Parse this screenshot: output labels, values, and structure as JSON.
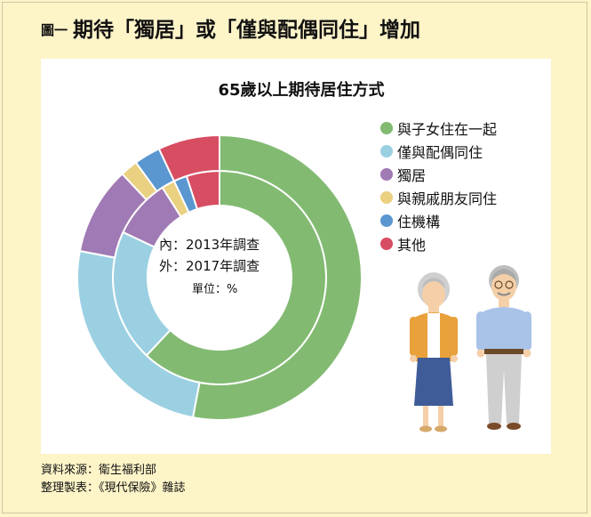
{
  "heading": {
    "figure_number": "圖一",
    "title": "期待「獨居」或「僅與配偶同住」增加"
  },
  "chart_data": {
    "type": "pie",
    "subtype": "nested-donut",
    "title": "65歲以上期待居住方式",
    "categories": [
      "與子女住在一起",
      "僅與配偶同住",
      "獨居",
      "與親戚朋友同住",
      "住機構",
      "其他"
    ],
    "colors": [
      "#82ba72",
      "#9bd0e2",
      "#a07ab4",
      "#ead081",
      "#5a96d0",
      "#d74d62"
    ],
    "series": [
      {
        "name": "2013年調查",
        "ring": "inner",
        "values": [
          62,
          20,
          9,
          2,
          2,
          5
        ]
      },
      {
        "name": "2017年調查",
        "ring": "outer",
        "values": [
          53,
          25,
          10,
          2,
          3,
          7
        ]
      }
    ],
    "center_labels": {
      "inner": "內：2013年調查",
      "outer": "外：2017年調查",
      "unit": "單位：%"
    },
    "legend_position": "right"
  },
  "source": {
    "line1": "資料來源：衛生福利部",
    "line2": "整理製表：《現代保險》雜誌"
  }
}
